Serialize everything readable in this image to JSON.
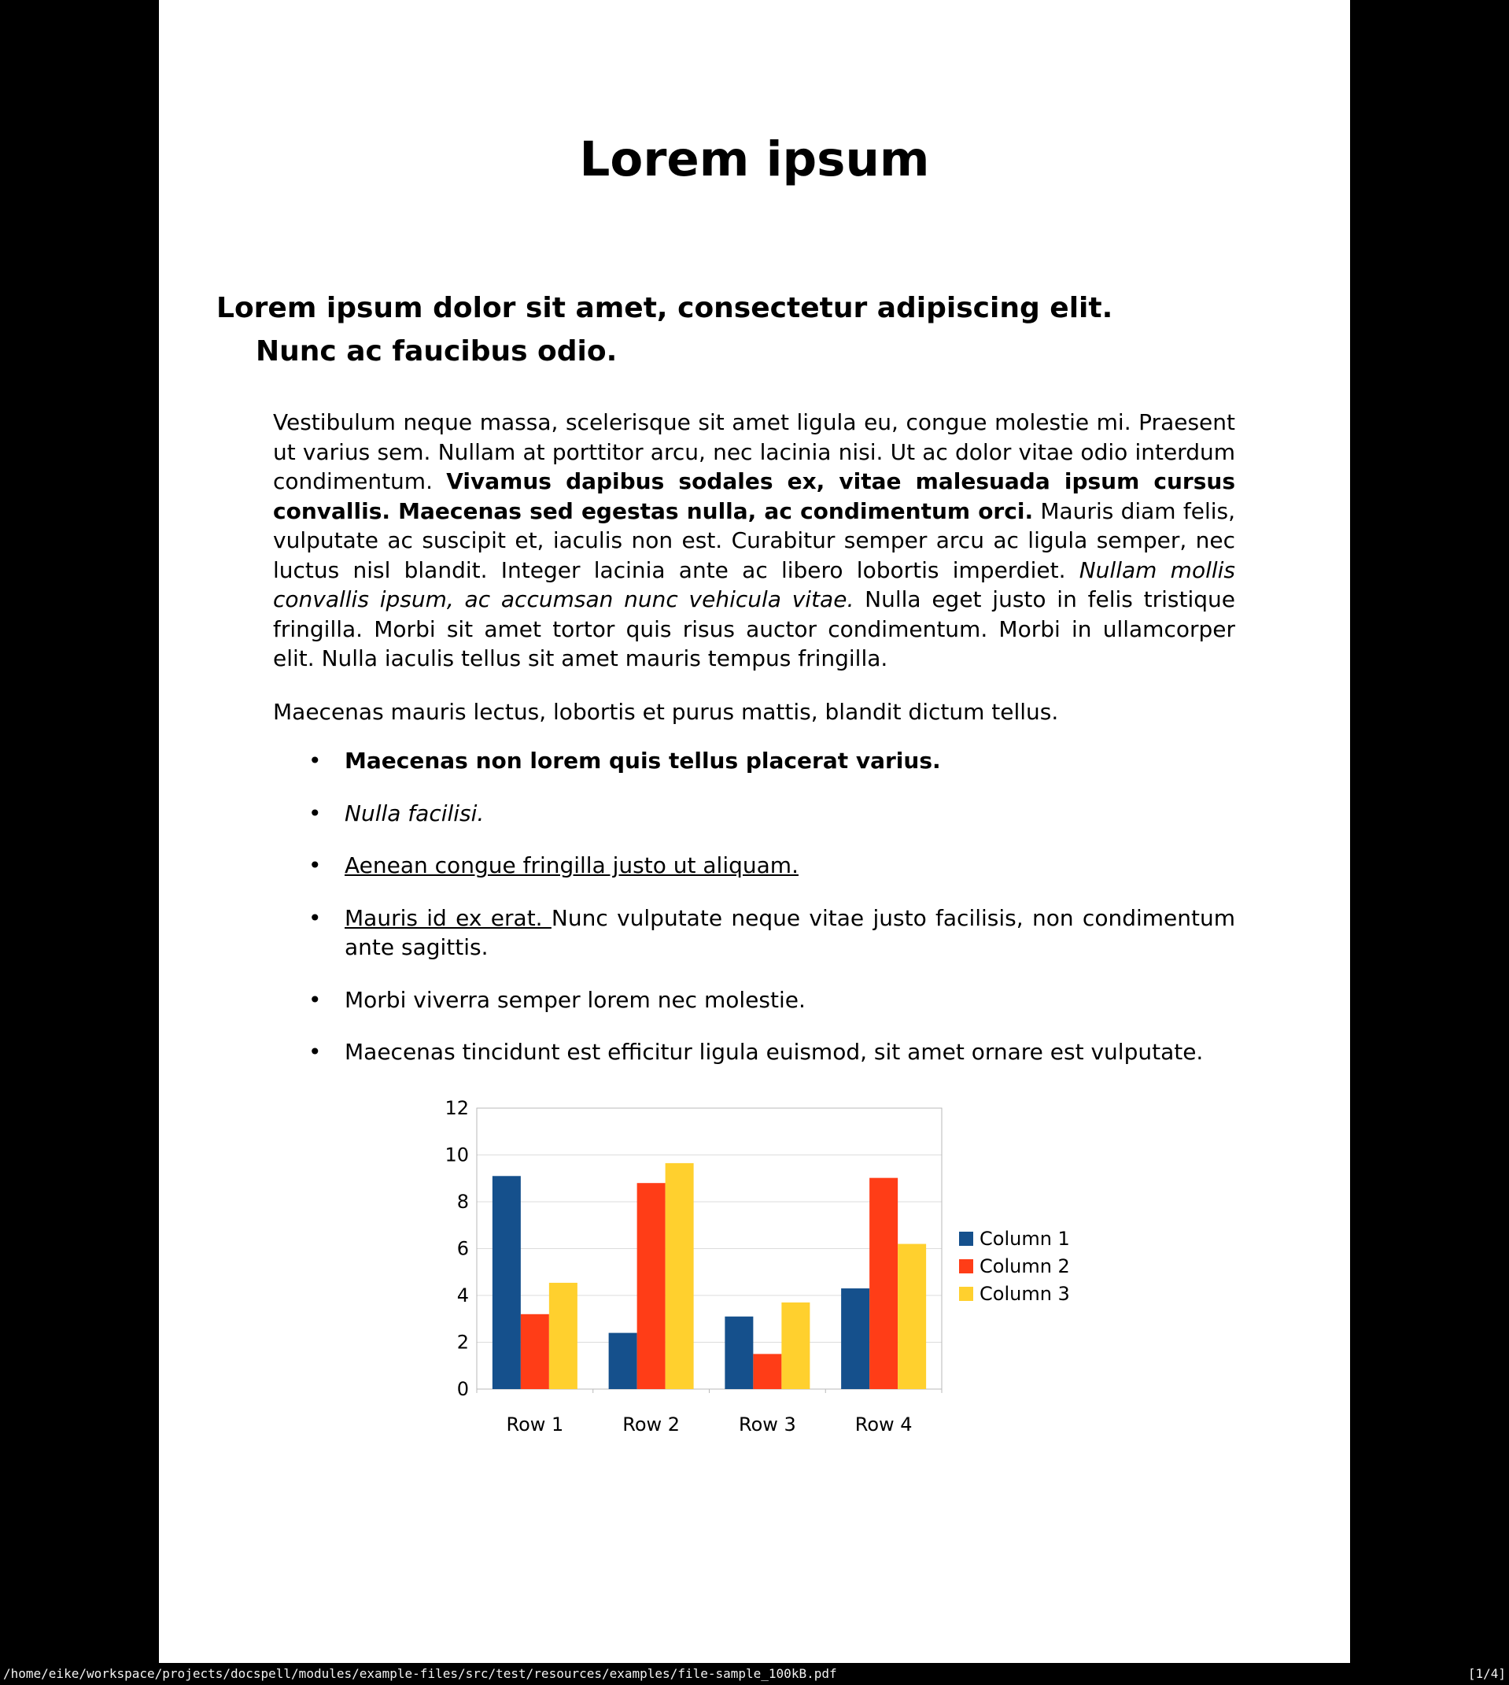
{
  "statusbar": {
    "path": "/home/eike/workspace/projects/docspell/modules/example-files/src/test/resources/examples/file-sample_100kB.pdf",
    "page_indicator": "[1/4]",
    "bg": "#000000",
    "fg": "#f2f2f2"
  },
  "document": {
    "title": "Lorem ipsum",
    "heading_lines": [
      "Lorem ipsum dolor sit amet, consectetur adipiscing elit.",
      "Nunc ac faucibus odio."
    ],
    "paragraph1_segments": [
      {
        "t": "Vestibulum neque massa, scelerisque sit amet ligula eu, congue molestie mi. Praesent ut varius sem. Nullam at porttitor arcu, nec lacinia nisi. Ut ac dolor vitae odio interdum condimentum. "
      },
      {
        "t": "Vivamus dapibus sodales ex, vitae malesuada ipsum cursus convallis. Maecenas sed egestas nulla, ac condimentum orci.",
        "b": true
      },
      {
        "t": " Mauris diam felis, vulputate ac suscipit et, iaculis non est. Curabitur semper arcu ac ligula semper, nec luctus nisl blandit. Integer lacinia ante ac libero lobortis imperdiet. "
      },
      {
        "t": "Nullam mollis convallis ipsum, ac accumsan nunc vehicula vitae.",
        "i": true
      },
      {
        "t": " Nulla eget justo in felis tristique fringilla. Morbi sit amet tortor quis risus auctor condimentum. Morbi in ullamcorper elit. Nulla iaculis tellus sit amet mauris tempus fringilla."
      }
    ],
    "paragraph2": "Maecenas mauris lectus, lobortis et purus mattis, blandit dictum tellus.",
    "bullets": [
      {
        "segments": [
          {
            "t": "Maecenas non lorem quis tellus placerat varius.",
            "b": true
          }
        ]
      },
      {
        "segments": [
          {
            "t": "Nulla facilisi.",
            "i": true
          }
        ]
      },
      {
        "segments": [
          {
            "t": "Aenean congue fringilla justo ut aliquam. ",
            "u": true
          }
        ]
      },
      {
        "segments": [
          {
            "t": "Mauris id ex erat. ",
            "u": true
          },
          {
            "t": "Nunc vulputate neque vitae justo facilisis, non condimentum ante sagittis."
          }
        ]
      },
      {
        "segments": [
          {
            "t": "Morbi viverra semper lorem nec molestie."
          }
        ]
      },
      {
        "segments": [
          {
            "t": "Maecenas tincidunt est efficitur ligula euismod, sit amet ornare est vulputate."
          }
        ]
      }
    ]
  },
  "chart_data": {
    "type": "bar",
    "categories": [
      "Row 1",
      "Row 2",
      "Row 3",
      "Row 4"
    ],
    "series": [
      {
        "name": "Column 1",
        "color": "#15508C",
        "values": [
          9.1,
          2.4,
          3.1,
          4.3
        ]
      },
      {
        "name": "Column 2",
        "color": "#FF3D17",
        "values": [
          3.2,
          8.8,
          1.5,
          9.02
        ]
      },
      {
        "name": "Column 3",
        "color": "#FFD02E",
        "values": [
          4.54,
          9.65,
          3.7,
          6.2
        ]
      }
    ],
    "title": "",
    "xlabel": "",
    "ylabel": "",
    "ylim": [
      0,
      12
    ],
    "ytick_step": 2,
    "grid": true,
    "legend_position": "right",
    "axis_color": "#b9b9b9",
    "grid_color": "#dcdcdc",
    "label_color": "#000000",
    "label_font_size": 24
  }
}
